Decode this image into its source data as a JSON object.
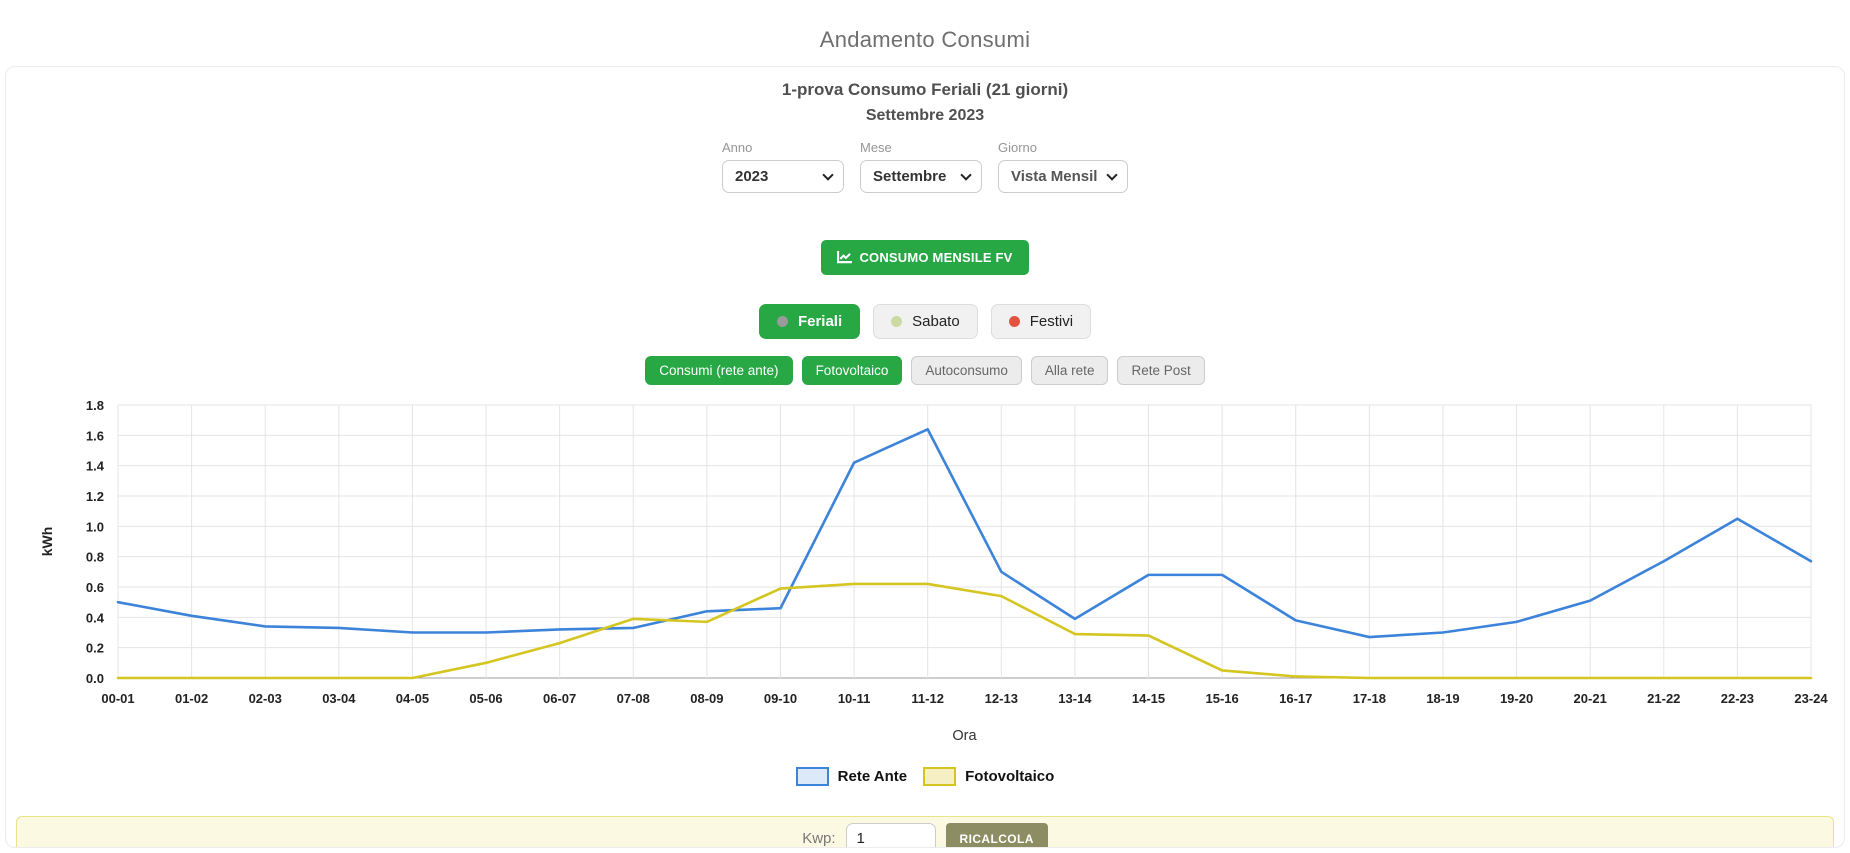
{
  "page": {
    "title": "Andamento Consumi"
  },
  "card": {
    "subtitle": "1-prova Consumo Feriali (21 giorni)",
    "period": "Settembre 2023"
  },
  "filters": {
    "anno": {
      "label": "Anno",
      "value": "2023"
    },
    "mese": {
      "label": "Mese",
      "value": "Settembre"
    },
    "giorno": {
      "label": "Giorno",
      "value": "Vista Mensile"
    }
  },
  "actions": {
    "consumo_mensile_fv": "CONSUMO MENSILE FV"
  },
  "day_type_buttons": [
    {
      "label": "Feriali",
      "active": true,
      "dot_color": "#9a9a9a"
    },
    {
      "label": "Sabato",
      "active": false,
      "dot_color": "#cbd9a2"
    },
    {
      "label": "Festivi",
      "active": false,
      "dot_color": "#e2543e"
    }
  ],
  "series_buttons": [
    {
      "label": "Consumi (rete ante)",
      "active": true
    },
    {
      "label": "Fotovoltaico",
      "active": true
    },
    {
      "label": "Autoconsumo",
      "active": false
    },
    {
      "label": "Alla rete",
      "active": false
    },
    {
      "label": "Rete Post",
      "active": false
    }
  ],
  "chart_data": {
    "type": "line",
    "title": "",
    "xlabel": "Ora",
    "ylabel": "kWh",
    "ylim": [
      0,
      1.8
    ],
    "ytick_step": 0.2,
    "grid": true,
    "legend_position": "bottom",
    "categories": [
      "00-01",
      "01-02",
      "02-03",
      "03-04",
      "04-05",
      "05-06",
      "06-07",
      "07-08",
      "08-09",
      "09-10",
      "10-11",
      "11-12",
      "12-13",
      "13-14",
      "14-15",
      "15-16",
      "16-17",
      "17-18",
      "18-19",
      "19-20",
      "20-21",
      "21-22",
      "22-23",
      "23-24"
    ],
    "series": [
      {
        "name": "Rete Ante",
        "color": "#3c83da",
        "legend_fill": "#dce9f8",
        "values": [
          0.5,
          0.41,
          0.34,
          0.33,
          0.3,
          0.3,
          0.32,
          0.33,
          0.44,
          0.46,
          1.42,
          1.64,
          0.7,
          0.39,
          0.68,
          0.68,
          0.38,
          0.27,
          0.3,
          0.37,
          0.51,
          0.77,
          1.05,
          0.77
        ]
      },
      {
        "name": "Fotovoltaico",
        "color": "#d4c520",
        "legend_fill": "#f5efc3",
        "values": [
          0,
          0,
          0,
          0,
          0,
          0.1,
          0.23,
          0.39,
          0.37,
          0.59,
          0.62,
          0.62,
          0.54,
          0.29,
          0.28,
          0.05,
          0.01,
          0,
          0,
          0,
          0,
          0,
          0,
          0
        ]
      }
    ]
  },
  "recalc_bar": {
    "label": "Kwp:",
    "input_value": "1",
    "button": "RICALCOLA"
  },
  "colors": {
    "accent_green": "#28a745",
    "grid_line": "#e4e4e4",
    "axis_line": "#9e9e9e",
    "tick_text": "#222222",
    "panel_yellow_bg": "#fcf9e2",
    "panel_yellow_border": "#e8e487",
    "recalc_button": "#8d8d63",
    "bottom_strip_blue": "#cddff2"
  }
}
